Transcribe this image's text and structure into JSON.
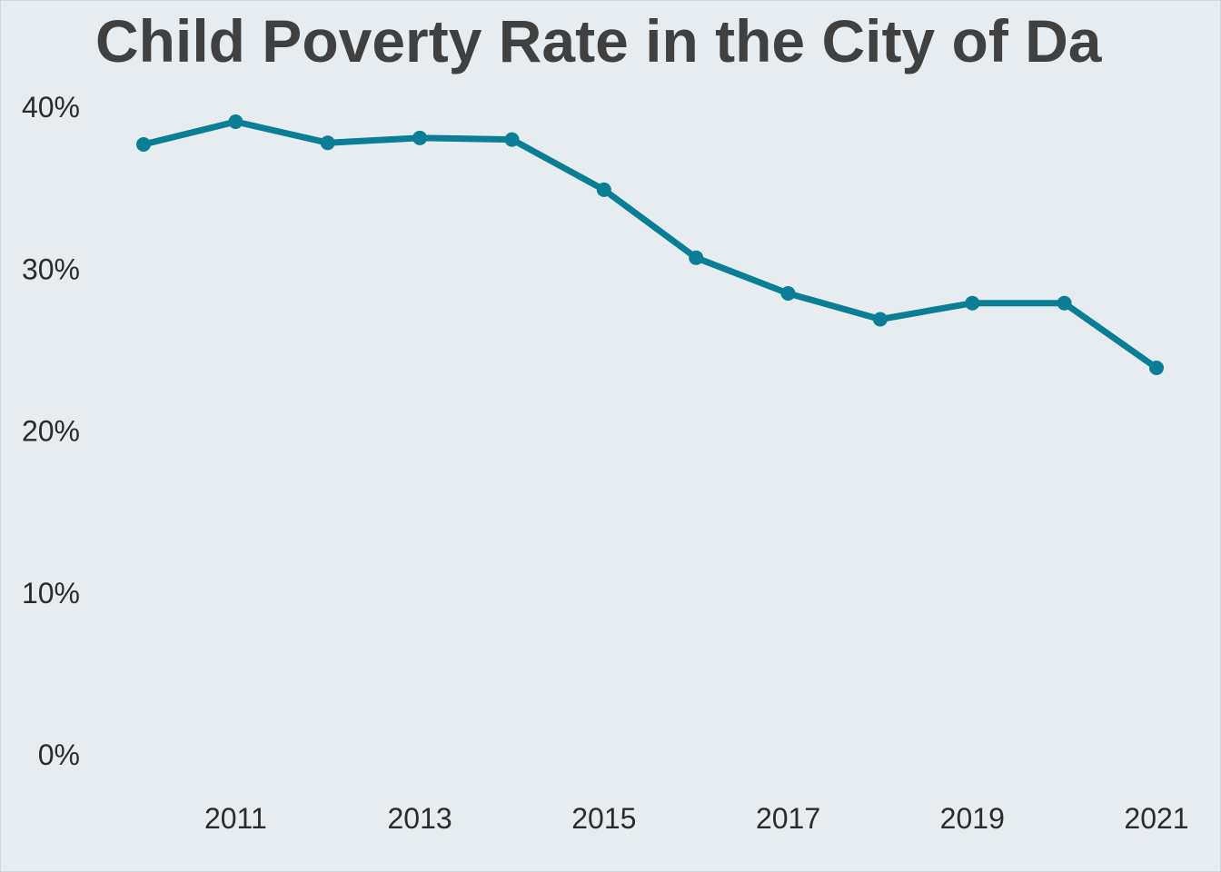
{
  "chart_data": {
    "type": "line",
    "title": "Child Poverty Rate in the City of Da",
    "xlabel": "",
    "ylabel": "",
    "x": [
      2010,
      2011,
      2012,
      2013,
      2014,
      2015,
      2016,
      2017,
      2018,
      2019,
      2020,
      2021
    ],
    "series": [
      {
        "values": [
          0.377,
          0.391,
          0.378,
          0.381,
          0.38,
          0.349,
          0.307,
          0.285,
          0.269,
          0.279,
          0.279,
          0.239
        ]
      }
    ],
    "x_ticks": [
      "2011",
      "2013",
      "2015",
      "2017",
      "2019",
      "2021"
    ],
    "y_ticks": [
      "0%",
      "10%",
      "20%",
      "30%",
      "40%"
    ],
    "y_tick_values": [
      0,
      0.1,
      0.2,
      0.3,
      0.4
    ],
    "x_tick_values": [
      2011,
      2013,
      2015,
      2017,
      2019,
      2021
    ],
    "xlim": [
      2010,
      2021
    ],
    "ylim": [
      0,
      0.4
    ],
    "grid": false,
    "legend": "none",
    "line_color": "#0a7e94",
    "background_color": "#e6ecef"
  }
}
